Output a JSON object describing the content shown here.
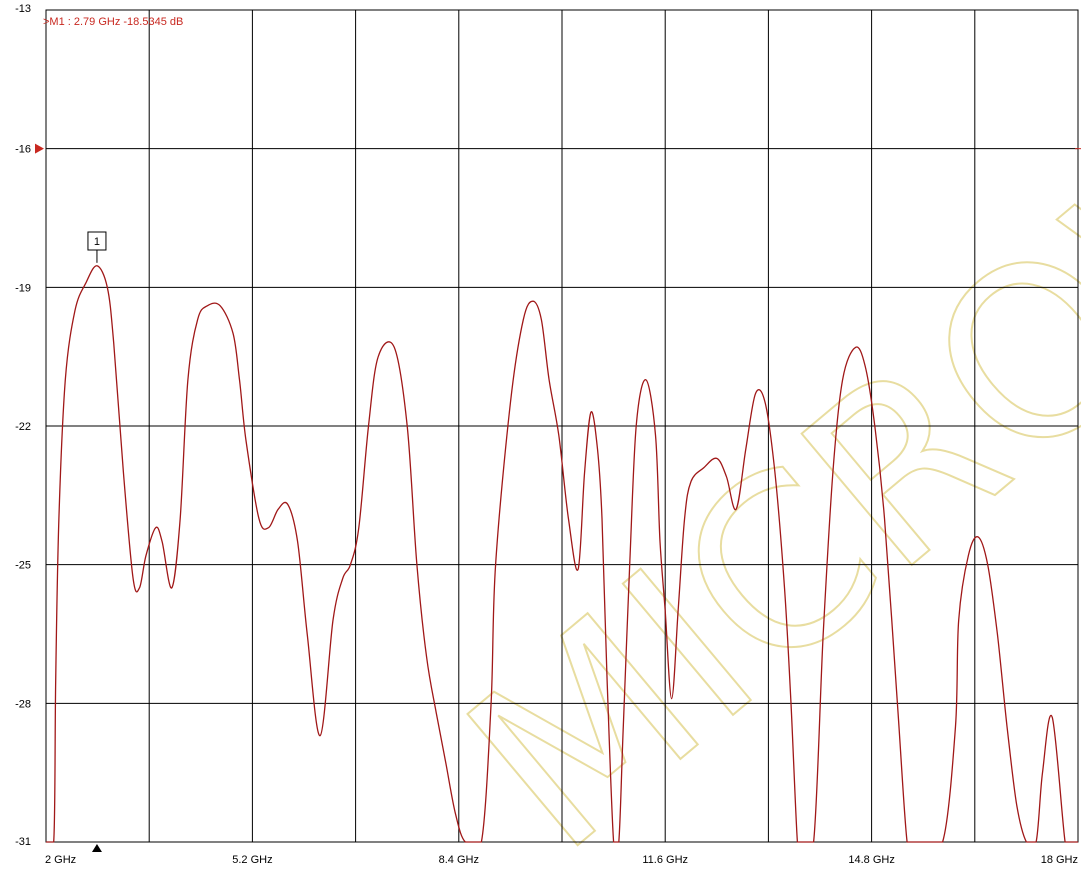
{
  "colors": {
    "background": "#ffffff",
    "grid": "#000000",
    "trace": "#a01818",
    "marker": "#c82820",
    "watermark": "#e8dda0"
  },
  "marker": {
    "readout": ">M1  :  2.79 GHz  -18.5345  dB",
    "label": "1",
    "x": 2.79,
    "y": -18.5345
  },
  "reference_level": -16,
  "chart_data": {
    "type": "line",
    "title": "",
    "xlabel": "",
    "ylabel": "",
    "xlim": [
      2,
      18
    ],
    "ylim": [
      -31,
      -13
    ],
    "xticks": [
      2,
      5.2,
      8.4,
      11.6,
      14.8,
      18
    ],
    "xtick_labels": [
      "2 GHz",
      "5.2 GHz",
      "8.4 GHz",
      "11.6 GHz",
      "14.8 GHz",
      "18 GHz"
    ],
    "yticks": [
      -13,
      -16,
      -19,
      -22,
      -25,
      -28,
      -31
    ],
    "ytick_labels": [
      "-13",
      "-16",
      "-19",
      "-22",
      "-25",
      "-28",
      "-31"
    ],
    "grid": true,
    "series": [
      {
        "x": [
          2.0,
          2.12,
          2.15,
          2.2,
          2.3,
          2.45,
          2.62,
          2.79,
          2.95,
          3.05,
          3.2,
          3.35,
          3.45,
          3.55,
          3.7,
          3.8,
          3.95,
          4.08,
          4.2,
          4.35,
          4.5,
          4.7,
          4.9,
          5.0,
          5.1,
          5.3,
          5.45,
          5.6,
          5.75,
          5.9,
          6.05,
          6.25,
          6.45,
          6.6,
          6.72,
          6.85,
          7.0,
          7.15,
          7.4,
          7.6,
          7.75,
          7.9,
          8.05,
          8.2,
          8.35,
          8.5,
          8.75,
          8.9,
          8.97,
          9.2,
          9.4,
          9.55,
          9.68,
          9.8,
          9.95,
          10.1,
          10.25,
          10.35,
          10.45,
          10.55,
          10.62,
          10.7,
          10.8,
          10.88,
          10.95,
          11.05,
          11.15,
          11.3,
          11.45,
          11.52,
          11.6,
          11.7,
          11.8,
          11.9,
          12.0,
          12.2,
          12.4,
          12.55,
          12.7,
          12.85,
          13.0,
          13.15,
          13.3,
          13.45,
          13.55,
          13.65,
          13.7,
          13.9,
          14.05,
          14.2,
          14.35,
          14.55,
          14.7,
          14.85,
          15.0,
          15.2,
          15.35,
          15.45,
          15.55,
          15.9,
          16.1,
          16.15,
          16.3,
          16.45,
          16.6,
          16.75,
          16.9,
          17.05,
          17.2,
          17.35,
          17.45,
          17.6,
          17.8,
          17.88,
          17.95,
          18.0
        ],
        "y": [
          -31.0,
          -31.0,
          -27.5,
          -24.0,
          -21.0,
          -19.5,
          -18.9,
          -18.5345,
          -19.0,
          -20.2,
          -23.0,
          -25.3,
          -25.5,
          -24.8,
          -24.2,
          -24.5,
          -25.5,
          -24.0,
          -21.0,
          -19.7,
          -19.4,
          -19.4,
          -20.0,
          -21.0,
          -22.3,
          -24.0,
          -24.2,
          -23.8,
          -23.7,
          -24.5,
          -26.5,
          -28.7,
          -26.2,
          -25.3,
          -25.0,
          -24.2,
          -22.0,
          -20.5,
          -20.3,
          -22.0,
          -25.0,
          -27.0,
          -28.2,
          -29.3,
          -30.4,
          -31.0,
          -31.0,
          -28.0,
          -25.0,
          -21.5,
          -19.7,
          -19.3,
          -19.7,
          -21.0,
          -22.2,
          -24.0,
          -25.1,
          -23.0,
          -21.7,
          -22.5,
          -24.0,
          -27.5,
          -31.0,
          -31.0,
          -28.5,
          -25.0,
          -22.0,
          -21.0,
          -22.2,
          -24.5,
          -26.0,
          -27.9,
          -26.0,
          -24.0,
          -23.2,
          -22.9,
          -22.7,
          -23.1,
          -23.8,
          -22.5,
          -21.3,
          -21.5,
          -23.0,
          -25.5,
          -28.0,
          -31.0,
          -31.0,
          -31.0,
          -26.5,
          -23.0,
          -21.0,
          -20.3,
          -20.7,
          -22.0,
          -24.0,
          -28.0,
          -31.0,
          -31.0,
          -31.0,
          -31.0,
          -28.5,
          -26.2,
          -24.8,
          -24.4,
          -25.0,
          -26.5,
          -28.5,
          -30.2,
          -31.0,
          -31.0,
          -29.5,
          -28.3,
          -31.0,
          -31.0,
          -31.0,
          -31.0
        ]
      }
    ]
  }
}
